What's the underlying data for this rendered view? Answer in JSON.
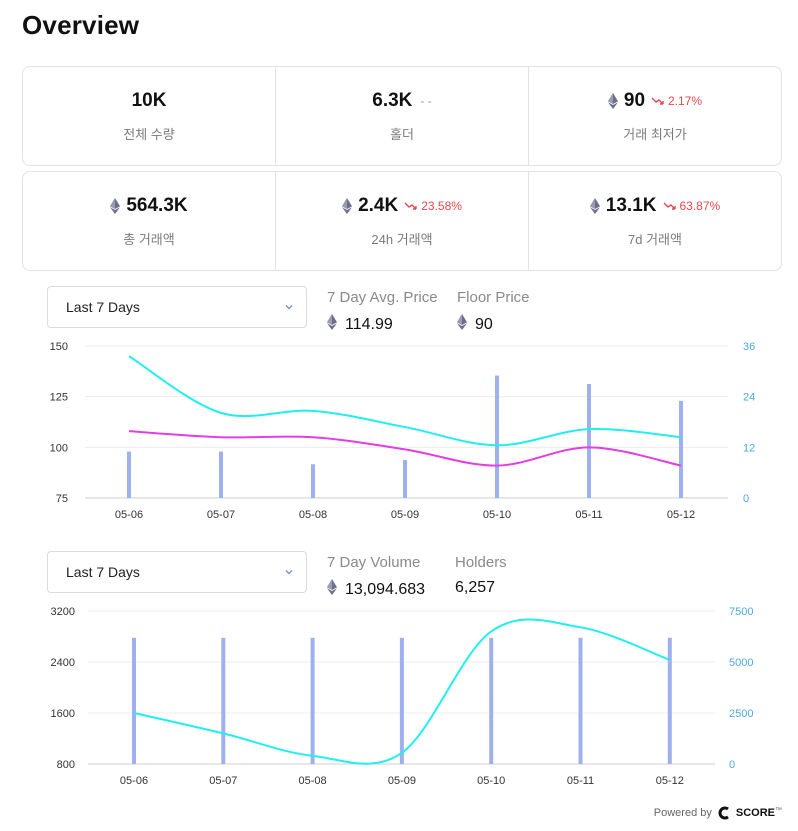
{
  "page": {
    "title": "Overview"
  },
  "stats_row1": [
    {
      "value": "10K",
      "label": "전체 수량",
      "eth": false,
      "suffix": "",
      "change": ""
    },
    {
      "value": "6.3K",
      "label": "홀더",
      "eth": false,
      "suffix": "- -",
      "change": ""
    },
    {
      "value": "90",
      "label": "거래 최저가",
      "eth": true,
      "suffix": "",
      "change": "2.17%"
    }
  ],
  "stats_row2": [
    {
      "value": "564.3K",
      "label": "총 거래액",
      "eth": true,
      "suffix": "",
      "change": ""
    },
    {
      "value": "2.4K",
      "label": "24h 거래액",
      "eth": true,
      "suffix": "",
      "change": "23.58%"
    },
    {
      "value": "13.1K",
      "label": "7d 거래액",
      "eth": true,
      "suffix": "",
      "change": "63.87%"
    }
  ],
  "chart1_panel": {
    "select_value": "Last 7 Days",
    "metric1_label": "7 Day Avg. Price",
    "metric1_value": "114.99",
    "metric2_label": "Floor Price",
    "metric2_value": "90"
  },
  "chart2_panel": {
    "select_value": "Last 7 Days",
    "metric1_label": "7 Day Volume",
    "metric1_value": "13,094.683",
    "metric2_label": "Holders",
    "metric2_value": "6,257"
  },
  "colors": {
    "accent_cyan": "#22eef0",
    "accent_magenta": "#e23ee6",
    "bar": "#9fb0ee",
    "right_axis": "#4fa8e0",
    "down": "#e5484d"
  },
  "chart_data": [
    {
      "type": "line",
      "categories": [
        "05-06",
        "05-07",
        "05-08",
        "05-09",
        "05-10",
        "05-11",
        "05-12"
      ],
      "ylim": [
        75,
        150
      ],
      "yticks": [
        75,
        100,
        125,
        150
      ],
      "y2lim": [
        0,
        36
      ],
      "y2ticks": [
        0,
        12,
        24,
        36
      ],
      "grid": true,
      "series": [
        {
          "type": "line",
          "values": [
            145,
            117,
            118,
            110,
            101,
            109,
            105
          ]
        },
        {
          "type": "line",
          "values": [
            108,
            105,
            105,
            99,
            91,
            100,
            91
          ]
        },
        {
          "type": "bar",
          "axis": "right",
          "values": [
            11,
            11,
            8,
            9,
            29,
            27,
            23
          ]
        }
      ]
    },
    {
      "type": "line",
      "categories": [
        "05-06",
        "05-07",
        "05-08",
        "05-09",
        "05-10",
        "05-11",
        "05-12"
      ],
      "ylim": [
        800,
        3200
      ],
      "yticks": [
        800,
        1600,
        2400,
        3200
      ],
      "y2lim": [
        0,
        7500
      ],
      "y2ticks": [
        0,
        2500,
        5000,
        7500
      ],
      "grid": true,
      "series": [
        {
          "type": "line",
          "axis": "right",
          "values": [
            2500,
            1500,
            400,
            550,
            6500,
            6700,
            5100
          ]
        },
        {
          "type": "bar",
          "values": [
            2780,
            2780,
            2780,
            2780,
            2780,
            2780,
            2780
          ]
        }
      ]
    }
  ],
  "footer": {
    "powered_by": "Powered by",
    "brand": "SCORE",
    "tm": "™"
  }
}
